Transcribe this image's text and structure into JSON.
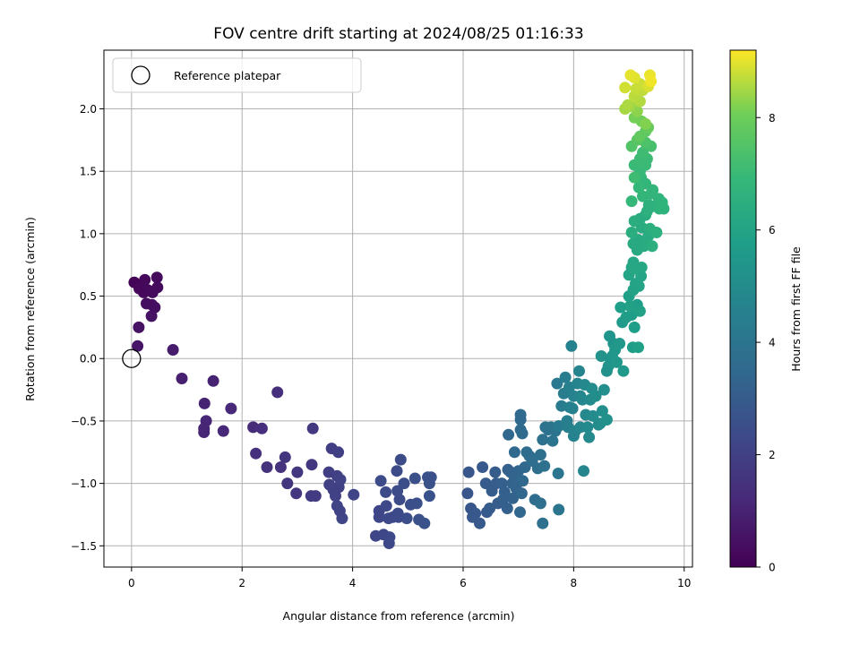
{
  "chart_data": {
    "type": "scatter",
    "title": "FOV centre drift starting at 2024/08/25 01:16:33",
    "xlabel": "Angular distance from reference (arcmin)",
    "ylabel": "Rotation from reference (arcmin)",
    "xlim": [
      -0.5,
      10.15
    ],
    "ylim": [
      -1.67,
      2.47
    ],
    "xticks": [
      "0",
      "2",
      "4",
      "6",
      "8",
      "10"
    ],
    "yticks": [
      "−1.5",
      "−1.0",
      "−0.5",
      "0.0",
      "0.5",
      "1.0",
      "1.5",
      "2.0"
    ],
    "grid": true,
    "legend": {
      "position": "top-left",
      "entries": [
        "Reference platepar"
      ]
    },
    "reference_point": {
      "x": 0.0,
      "y": 0.0
    },
    "colorbar": {
      "label": "Hours from first FF file",
      "range": [
        0,
        9.2
      ],
      "ticks": [
        "0",
        "2",
        "4",
        "6",
        "8"
      ],
      "colormap": "viridis"
    },
    "points": [
      [
        0.05,
        0.61,
        0.1
      ],
      [
        0.14,
        0.56,
        0.2
      ],
      [
        0.22,
        0.53,
        0.2
      ],
      [
        0.24,
        0.63,
        0.2
      ],
      [
        0.29,
        0.55,
        0.25
      ],
      [
        0.38,
        0.53,
        0.3
      ],
      [
        0.46,
        0.65,
        0.3
      ],
      [
        0.47,
        0.57,
        0.3
      ],
      [
        0.27,
        0.44,
        0.35
      ],
      [
        0.37,
        0.43,
        0.35
      ],
      [
        0.42,
        0.41,
        0.4
      ],
      [
        0.36,
        0.34,
        0.5
      ],
      [
        0.13,
        0.25,
        0.5
      ],
      [
        0.11,
        0.1,
        0.6
      ],
      [
        0.75,
        0.07,
        0.8
      ],
      [
        0.91,
        -0.16,
        0.9
      ],
      [
        1.32,
        -0.36,
        1.0
      ],
      [
        1.48,
        -0.18,
        1.0
      ],
      [
        1.35,
        -0.5,
        1.1
      ],
      [
        1.31,
        -0.56,
        1.1
      ],
      [
        1.31,
        -0.59,
        1.1
      ],
      [
        1.8,
        -0.4,
        1.2
      ],
      [
        1.66,
        -0.58,
        1.2
      ],
      [
        2.2,
        -0.55,
        1.3
      ],
      [
        2.36,
        -0.56,
        1.4
      ],
      [
        2.64,
        -0.27,
        1.4
      ],
      [
        2.25,
        -0.76,
        1.45
      ],
      [
        2.45,
        -0.87,
        1.5
      ],
      [
        2.7,
        -0.87,
        1.55
      ],
      [
        2.78,
        -0.79,
        1.6
      ],
      [
        2.82,
        -1.0,
        1.6
      ],
      [
        2.98,
        -1.08,
        1.65
      ],
      [
        3.0,
        -0.91,
        1.7
      ],
      [
        3.26,
        -0.85,
        1.7
      ],
      [
        3.28,
        -0.56,
        1.75
      ],
      [
        3.25,
        -1.1,
        1.8
      ],
      [
        3.33,
        -1.1,
        1.8
      ],
      [
        3.57,
        -0.91,
        1.9
      ],
      [
        3.62,
        -0.72,
        1.9
      ],
      [
        3.74,
        -0.75,
        1.95
      ],
      [
        3.58,
        -1.01,
        2.0
      ],
      [
        3.65,
        -1.05,
        2.0
      ],
      [
        3.72,
        -0.94,
        2.0
      ],
      [
        3.75,
        -1.03,
        2.0
      ],
      [
        3.78,
        -0.97,
        2.05
      ],
      [
        3.69,
        -1.1,
        2.05
      ],
      [
        3.72,
        -1.18,
        2.1
      ],
      [
        3.77,
        -1.22,
        2.1
      ],
      [
        3.81,
        -1.28,
        2.15
      ],
      [
        4.02,
        -1.09,
        2.15
      ],
      [
        4.48,
        -1.22,
        2.2
      ],
      [
        4.48,
        -1.27,
        2.2
      ],
      [
        4.42,
        -1.42,
        2.2
      ],
      [
        4.56,
        -1.41,
        2.25
      ],
      [
        4.66,
        -1.48,
        2.25
      ],
      [
        4.67,
        -1.43,
        2.3
      ],
      [
        4.61,
        -1.18,
        2.3
      ],
      [
        4.73,
        -1.27,
        2.3
      ],
      [
        4.65,
        -1.28,
        2.3
      ],
      [
        4.82,
        -1.24,
        2.35
      ],
      [
        4.83,
        -1.27,
        2.35
      ],
      [
        4.85,
        -1.13,
        2.4
      ],
      [
        4.87,
        -0.81,
        2.4
      ],
      [
        4.8,
        -0.9,
        2.4
      ],
      [
        4.6,
        -1.07,
        2.4
      ],
      [
        4.51,
        -0.98,
        2.4
      ],
      [
        4.81,
        -1.06,
        2.45
      ],
      [
        4.93,
        -1.0,
        2.5
      ],
      [
        4.98,
        -1.28,
        2.5
      ],
      [
        5.05,
        -1.17,
        2.5
      ],
      [
        5.16,
        -1.16,
        2.55
      ],
      [
        5.13,
        -0.96,
        2.55
      ],
      [
        5.36,
        -0.95,
        2.6
      ],
      [
        5.42,
        -0.95,
        2.6
      ],
      [
        5.39,
        -1.0,
        2.6
      ],
      [
        5.39,
        -1.1,
        2.65
      ],
      [
        5.3,
        -1.32,
        2.65
      ],
      [
        5.2,
        -1.29,
        2.6
      ],
      [
        6.1,
        -0.91,
        2.8
      ],
      [
        6.08,
        -1.08,
        2.8
      ],
      [
        6.14,
        -1.2,
        2.8
      ],
      [
        6.17,
        -1.27,
        2.85
      ],
      [
        6.22,
        -1.24,
        2.85
      ],
      [
        6.3,
        -1.32,
        2.9
      ],
      [
        6.35,
        -0.87,
        2.9
      ],
      [
        6.41,
        -1.0,
        2.95
      ],
      [
        6.43,
        -1.23,
        2.95
      ],
      [
        6.48,
        -1.2,
        3.0
      ],
      [
        6.52,
        -1.06,
        3.0
      ],
      [
        6.58,
        -0.91,
        3.0
      ],
      [
        6.6,
        -1.0,
        3.05
      ],
      [
        6.63,
        -1.16,
        3.05
      ],
      [
        6.7,
        -1.0,
        3.1
      ],
      [
        6.72,
        -1.13,
        3.1
      ],
      [
        6.75,
        -1.07,
        3.15
      ],
      [
        6.8,
        -1.2,
        3.15
      ],
      [
        6.81,
        -0.89,
        3.2
      ],
      [
        6.86,
        -0.91,
        3.2
      ],
      [
        6.89,
        -1.0,
        3.25
      ],
      [
        6.9,
        -1.12,
        3.25
      ],
      [
        6.93,
        -0.95,
        3.3
      ],
      [
        6.96,
        -1.04,
        3.3
      ],
      [
        6.98,
        -0.95,
        3.35
      ],
      [
        7.0,
        -0.9,
        3.35
      ],
      [
        7.03,
        -1.23,
        3.4
      ],
      [
        7.06,
        -1.08,
        3.4
      ],
      [
        7.08,
        -0.98,
        3.45
      ],
      [
        7.12,
        -0.87,
        3.45
      ],
      [
        6.82,
        -0.61,
        3.5
      ],
      [
        6.93,
        -0.75,
        3.5
      ],
      [
        7.04,
        -0.45,
        3.55
      ],
      [
        7.04,
        -0.49,
        3.55
      ],
      [
        7.04,
        -0.57,
        3.6
      ],
      [
        7.07,
        -0.6,
        3.6
      ],
      [
        7.15,
        -0.75,
        3.65
      ],
      [
        7.2,
        -0.78,
        3.65
      ],
      [
        7.25,
        -0.82,
        3.7
      ],
      [
        7.3,
        -1.13,
        3.7
      ],
      [
        7.35,
        -0.88,
        3.75
      ],
      [
        7.4,
        -0.77,
        3.75
      ],
      [
        7.4,
        -1.16,
        3.8
      ],
      [
        7.44,
        -1.32,
        3.8
      ],
      [
        7.47,
        -0.86,
        3.85
      ],
      [
        7.44,
        -0.65,
        3.85
      ],
      [
        7.49,
        -0.55,
        3.9
      ],
      [
        7.54,
        -0.57,
        3.9
      ],
      [
        7.59,
        -0.55,
        3.95
      ],
      [
        7.62,
        -0.66,
        4.0
      ],
      [
        7.67,
        -0.58,
        4.0
      ],
      [
        7.72,
        -0.92,
        4.05
      ],
      [
        7.73,
        -1.21,
        4.05
      ],
      [
        7.7,
        -0.2,
        4.2
      ],
      [
        7.73,
        -0.54,
        4.25
      ],
      [
        7.78,
        -0.38,
        4.3
      ],
      [
        7.82,
        -0.28,
        4.35
      ],
      [
        7.85,
        -0.15,
        4.4
      ],
      [
        7.88,
        -0.5,
        4.4
      ],
      [
        7.9,
        -0.55,
        4.45
      ],
      [
        7.92,
        -0.23,
        4.5
      ],
      [
        7.93,
        -0.39,
        4.5
      ],
      [
        7.96,
        0.1,
        4.55
      ],
      [
        7.98,
        -0.4,
        4.55
      ],
      [
        8.0,
        -0.3,
        4.6
      ],
      [
        8.0,
        -0.62,
        4.6
      ],
      [
        8.03,
        -0.58,
        4.65
      ],
      [
        8.07,
        -0.2,
        4.7
      ],
      [
        8.1,
        -0.1,
        4.7
      ],
      [
        8.12,
        -0.3,
        4.75
      ],
      [
        8.12,
        -0.55,
        4.75
      ],
      [
        8.16,
        -0.33,
        4.8
      ],
      [
        8.18,
        -0.9,
        4.8
      ],
      [
        8.2,
        -0.21,
        4.85
      ],
      [
        8.22,
        -0.45,
        4.85
      ],
      [
        8.25,
        -0.55,
        4.9
      ],
      [
        8.28,
        -0.63,
        4.9
      ],
      [
        8.3,
        -0.33,
        4.95
      ],
      [
        8.33,
        -0.24,
        5.0
      ],
      [
        8.35,
        -0.46,
        5.0
      ],
      [
        8.4,
        -0.3,
        5.05
      ],
      [
        8.45,
        -0.53,
        5.05
      ],
      [
        8.48,
        -0.52,
        5.1
      ],
      [
        8.52,
        -0.42,
        5.15
      ],
      [
        8.55,
        -0.25,
        5.15
      ],
      [
        8.6,
        -0.49,
        5.2
      ],
      [
        8.5,
        0.02,
        5.25
      ],
      [
        8.6,
        -0.1,
        5.25
      ],
      [
        8.63,
        -0.06,
        5.3
      ],
      [
        8.65,
        0.18,
        5.35
      ],
      [
        8.67,
        -0.03,
        5.35
      ],
      [
        8.7,
        0.02,
        5.4
      ],
      [
        8.72,
        0.12,
        5.4
      ],
      [
        8.75,
        0.07,
        5.45
      ],
      [
        8.78,
        -0.03,
        5.5
      ],
      [
        8.83,
        0.12,
        5.5
      ],
      [
        8.9,
        -0.1,
        5.55
      ],
      [
        8.88,
        0.29,
        5.6
      ],
      [
        8.95,
        0.33,
        5.65
      ],
      [
        9.05,
        0.35,
        5.7
      ],
      [
        9.07,
        0.09,
        5.7
      ],
      [
        9.1,
        0.25,
        5.75
      ],
      [
        9.15,
        0.43,
        5.8
      ],
      [
        8.85,
        0.41,
        5.8
      ],
      [
        9.0,
        0.5,
        5.85
      ],
      [
        9.02,
        0.42,
        5.9
      ],
      [
        9.2,
        0.38,
        5.9
      ],
      [
        9.17,
        0.09,
        5.85
      ],
      [
        9.08,
        0.55,
        5.95
      ],
      [
        9.12,
        0.6,
        6.0
      ],
      [
        9.18,
        0.58,
        6.0
      ],
      [
        9.22,
        0.66,
        6.05
      ],
      [
        9.0,
        0.67,
        6.05
      ],
      [
        9.05,
        0.73,
        6.1
      ],
      [
        9.08,
        0.77,
        6.1
      ],
      [
        9.13,
        0.72,
        6.15
      ],
      [
        9.23,
        0.73,
        6.15
      ],
      [
        9.15,
        0.87,
        6.2
      ],
      [
        9.08,
        0.92,
        6.25
      ],
      [
        9.17,
        0.95,
        6.25
      ],
      [
        9.27,
        0.9,
        6.3
      ],
      [
        9.23,
        1.05,
        6.3
      ],
      [
        9.3,
        0.93,
        6.35
      ],
      [
        9.35,
        0.98,
        6.35
      ],
      [
        9.2,
        1.12,
        6.4
      ],
      [
        9.3,
        1.15,
        6.4
      ],
      [
        9.1,
        1.1,
        6.45
      ],
      [
        9.05,
        1.01,
        6.45
      ],
      [
        9.38,
        1.04,
        6.5
      ],
      [
        9.42,
        0.9,
        6.5
      ],
      [
        9.5,
        1.01,
        6.55
      ],
      [
        9.33,
        1.18,
        6.55
      ],
      [
        9.36,
        1.23,
        6.6
      ],
      [
        9.45,
        1.22,
        6.6
      ],
      [
        9.55,
        1.2,
        6.65
      ],
      [
        9.63,
        1.2,
        6.65
      ],
      [
        9.6,
        1.25,
        6.7
      ],
      [
        9.54,
        1.28,
        6.7
      ],
      [
        9.43,
        1.35,
        6.75
      ],
      [
        9.4,
        1.32,
        6.75
      ],
      [
        9.3,
        1.4,
        6.8
      ],
      [
        9.25,
        1.3,
        6.8
      ],
      [
        9.22,
        1.45,
        6.85
      ],
      [
        9.18,
        1.37,
        6.9
      ],
      [
        9.05,
        1.26,
        6.9
      ],
      [
        9.2,
        1.5,
        6.95
      ],
      [
        9.1,
        1.55,
        7.0
      ],
      [
        9.3,
        1.55,
        7.0
      ],
      [
        9.33,
        1.6,
        7.05
      ],
      [
        9.2,
        1.6,
        7.05
      ],
      [
        9.1,
        1.45,
        7.1
      ],
      [
        9.25,
        1.65,
        7.1
      ],
      [
        9.4,
        1.7,
        7.3
      ],
      [
        9.3,
        1.73,
        7.4
      ],
      [
        9.05,
        1.7,
        7.5
      ],
      [
        9.15,
        1.75,
        7.6
      ],
      [
        9.3,
        1.82,
        7.7
      ],
      [
        9.2,
        1.78,
        7.8
      ],
      [
        9.35,
        1.85,
        7.9
      ],
      [
        9.23,
        1.9,
        8.0
      ],
      [
        9.1,
        1.93,
        8.1
      ],
      [
        9.3,
        1.88,
        8.2
      ],
      [
        9.15,
        1.98,
        8.3
      ],
      [
        9.02,
        2.02,
        8.4
      ],
      [
        8.93,
        2.0,
        8.5
      ],
      [
        8.98,
        2.03,
        8.55
      ],
      [
        9.2,
        2.06,
        8.6
      ],
      [
        9.1,
        2.1,
        8.65
      ],
      [
        9.25,
        2.15,
        8.7
      ],
      [
        9.13,
        2.16,
        8.75
      ],
      [
        9.2,
        2.2,
        8.8
      ],
      [
        8.93,
        2.17,
        8.85
      ],
      [
        9.35,
        2.18,
        8.9
      ],
      [
        9.1,
        2.25,
        8.95
      ],
      [
        9.03,
        2.27,
        9.0
      ],
      [
        9.38,
        2.27,
        9.05
      ],
      [
        9.4,
        2.22,
        9.1
      ]
    ]
  }
}
